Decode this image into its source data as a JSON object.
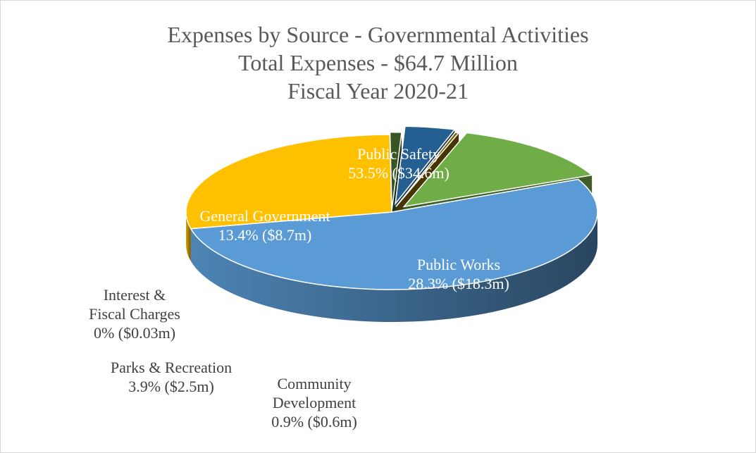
{
  "chart_title": {
    "line1": "Expenses by Source - Governmental Activities",
    "line2": "Total Expenses - $64.7 Million",
    "line3": "Fiscal Year 2020-21"
  },
  "chart_data": {
    "type": "pie",
    "title": "Expenses by Source - Governmental Activities / Total Expenses - $64.7 Million / Fiscal Year 2020-21",
    "total": 64.7,
    "unit": "$ million",
    "series": [
      {
        "name": "Public Safety",
        "percent": 53.5,
        "value": 34.6,
        "label_lines": [
          "Public Safety",
          "53.5% ($34.6m)"
        ],
        "color": "#5b9bd5",
        "label_color": "#ffffff"
      },
      {
        "name": "Public Works",
        "percent": 28.3,
        "value": 18.3,
        "label_lines": [
          "Public Works",
          "28.3% ($18.3m)"
        ],
        "color": "#ffc000",
        "label_color": "#ffffff"
      },
      {
        "name": "Community Development",
        "percent": 0.9,
        "value": 0.6,
        "label_lines": [
          "Community",
          "Development",
          "0.9% ($0.6m)"
        ],
        "color": "#375623",
        "label_color": "#404040"
      },
      {
        "name": "Parks & Recreation",
        "percent": 3.9,
        "value": 2.5,
        "label_lines": [
          "Parks & Recreation",
          "3.9% ($2.5m)"
        ],
        "color": "#255e91",
        "label_color": "#404040"
      },
      {
        "name": "Interest & Fiscal Charges",
        "percent": 0,
        "value": 0.03,
        "label_lines": [
          "Interest &",
          "Fiscal Charges",
          "0% ($0.03m)"
        ],
        "color": "#7f6000",
        "label_color": "#404040"
      },
      {
        "name": "General Government",
        "percent": 13.4,
        "value": 8.7,
        "label_lines": [
          "General Government",
          "13.4% ($8.7m)"
        ],
        "color": "#70ad47",
        "label_color": "#ffffff"
      }
    ],
    "legend": "none",
    "style": "3d-pie"
  }
}
